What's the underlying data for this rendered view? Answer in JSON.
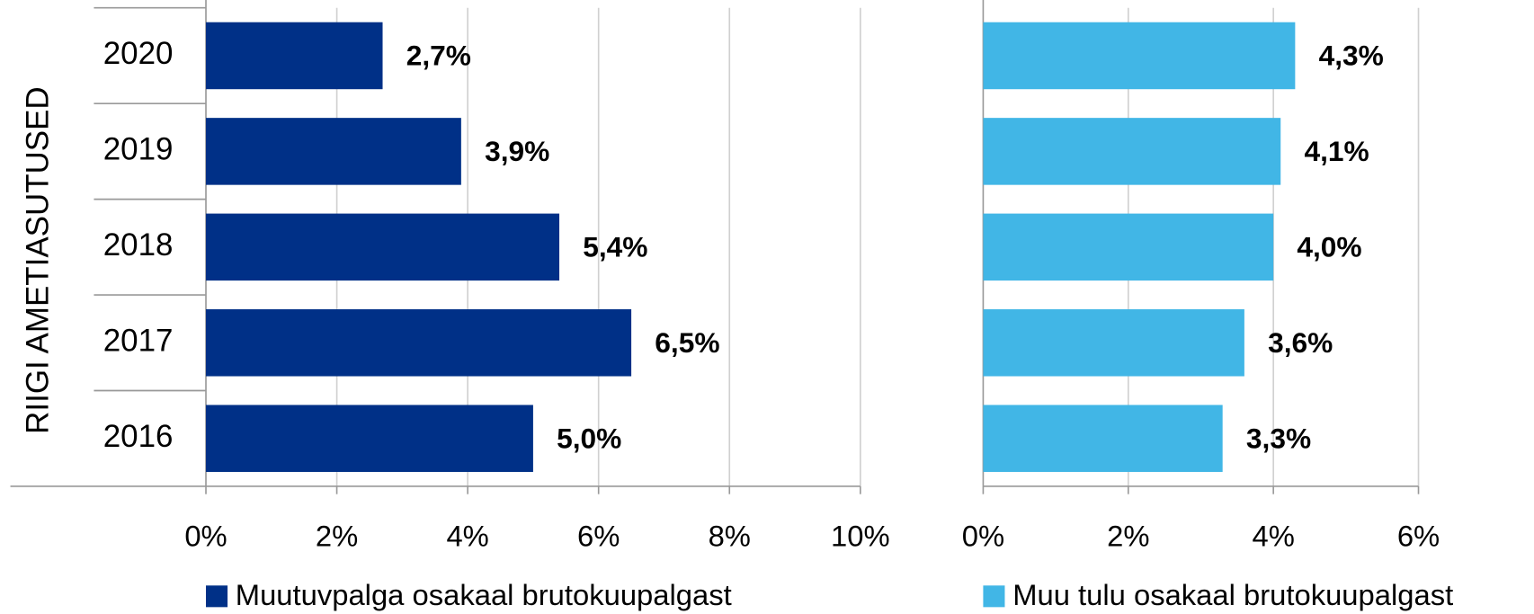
{
  "chart_data": [
    {
      "type": "bar",
      "orientation": "horizontal",
      "y_label": "RIIGI AMETIASUTUSED",
      "categories": [
        "2020",
        "2019",
        "2018",
        "2017",
        "2016"
      ],
      "series": [
        {
          "name": "Muutuvpalga osakaal brutokuupalgast",
          "color": "#003087",
          "values": [
            2.7,
            3.9,
            5.4,
            6.5,
            5.0
          ],
          "value_labels": [
            "2,7%",
            "3,9%",
            "5,4%",
            "6,5%",
            "5,0%"
          ]
        }
      ],
      "xlim": [
        0,
        10
      ],
      "xticks": [
        {
          "value": 0,
          "label": "0%"
        },
        {
          "value": 2,
          "label": "2%"
        },
        {
          "value": 4,
          "label": "4%"
        },
        {
          "value": 6,
          "label": "6%"
        },
        {
          "value": 8,
          "label": "8%"
        },
        {
          "value": 10,
          "label": "10%"
        }
      ],
      "grid": true
    },
    {
      "type": "bar",
      "orientation": "horizontal",
      "series": [
        {
          "name": "Muu tulu osakaal brutokuupalgast",
          "color": "#41b6e6",
          "values": [
            4.3,
            4.1,
            4.0,
            3.6,
            3.3
          ],
          "value_labels": [
            "4,3%",
            "4,1%",
            "4,0%",
            "3,6%",
            "3,3%"
          ]
        }
      ],
      "xlim": [
        0,
        6
      ],
      "xticks": [
        {
          "value": 0,
          "label": "0%"
        },
        {
          "value": 2,
          "label": "2%"
        },
        {
          "value": 4,
          "label": "4%"
        },
        {
          "value": 6,
          "label": "6%"
        }
      ],
      "grid": true
    }
  ]
}
